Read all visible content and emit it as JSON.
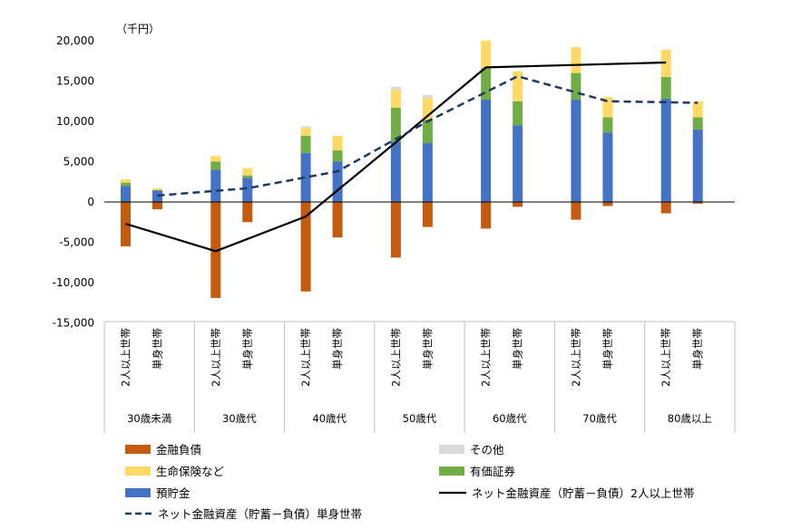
{
  "chart_data": {
    "type": "bar",
    "stacked": true,
    "unit_label": "（千円）",
    "ylim": [
      -15000,
      20000
    ],
    "yticks": [
      -15000,
      -10000,
      -5000,
      0,
      5000,
      10000,
      15000,
      20000
    ],
    "ytick_labels": [
      "-15,000",
      "-10,000",
      "-5,000",
      "0",
      "5,000",
      "10,000",
      "15,000",
      "20,000"
    ],
    "groups": [
      "30歳未満",
      "30歳代",
      "40歳代",
      "50歳代",
      "60歳代",
      "70歳代",
      "80歳以上"
    ],
    "subcategories": [
      "2人以上世帯",
      "単身世帯"
    ],
    "series": [
      {
        "name": "預貯金",
        "color": "#4472C4",
        "values": [
          [
            2000,
            1400
          ],
          [
            4000,
            3000
          ],
          [
            6100,
            5000
          ],
          [
            7500,
            7300
          ],
          [
            12700,
            9500
          ],
          [
            12700,
            8600
          ],
          [
            12800,
            9000
          ]
        ]
      },
      {
        "name": "有価証券",
        "color": "#70AD47",
        "values": [
          [
            400,
            100
          ],
          [
            1000,
            300
          ],
          [
            2100,
            1400
          ],
          [
            4200,
            2900
          ],
          [
            3900,
            3000
          ],
          [
            3300,
            1900
          ],
          [
            2700,
            1500
          ]
        ]
      },
      {
        "name": "生命保険など",
        "color": "#FFD966",
        "values": [
          [
            400,
            200
          ],
          [
            700,
            900
          ],
          [
            1000,
            1800
          ],
          [
            2200,
            2700
          ],
          [
            3400,
            3700
          ],
          [
            3200,
            2500
          ],
          [
            3400,
            2000
          ]
        ]
      },
      {
        "name": "その他",
        "color": "#D9D9D9",
        "values": [
          [
            0,
            0
          ],
          [
            0,
            0
          ],
          [
            200,
            0
          ],
          [
            400,
            400
          ],
          [
            0,
            0
          ],
          [
            0,
            0
          ],
          [
            0,
            0
          ]
        ]
      },
      {
        "name": "金融負債",
        "color": "#C55A11",
        "values": [
          [
            -5500,
            -900
          ],
          [
            -11900,
            -2500
          ],
          [
            -11100,
            -4400
          ],
          [
            -6900,
            -3100
          ],
          [
            -3300,
            -600
          ],
          [
            -2200,
            -500
          ],
          [
            -1400,
            -200
          ]
        ]
      }
    ],
    "lines": [
      {
        "name": "ネット金融資産（貯蓄－負債）2人以上世帯",
        "color": "#000000",
        "dash": "none",
        "x_sub": 0,
        "values": [
          -2700,
          -6100,
          -1800,
          7400,
          16700,
          17000,
          17300
        ]
      },
      {
        "name": "ネット金融資産（貯蓄－負債）単身世帯",
        "color": "#203864",
        "dash": "dashed",
        "x_sub": 1,
        "values": [
          800,
          1700,
          3800,
          10000,
          15600,
          12500,
          12300
        ]
      }
    ],
    "legend": {
      "placement": "bottom",
      "items": [
        {
          "name": "金融負債",
          "kind": "box",
          "color": "#C55A11"
        },
        {
          "name": "その他",
          "kind": "box",
          "color": "#D9D9D9"
        },
        {
          "name": "生命保険など",
          "kind": "box",
          "color": "#FFD966"
        },
        {
          "name": "有価証券",
          "kind": "box",
          "color": "#70AD47"
        },
        {
          "name": "預貯金",
          "kind": "box",
          "color": "#4472C4"
        },
        {
          "name": "ネット金融資産（貯蓄－負債）2人以上世帯",
          "kind": "line",
          "color": "#000000"
        },
        {
          "name": "ネット金融資産（貯蓄－負債）単身世帯",
          "kind": "dash",
          "color": "#203864"
        }
      ]
    },
    "grid": false
  }
}
